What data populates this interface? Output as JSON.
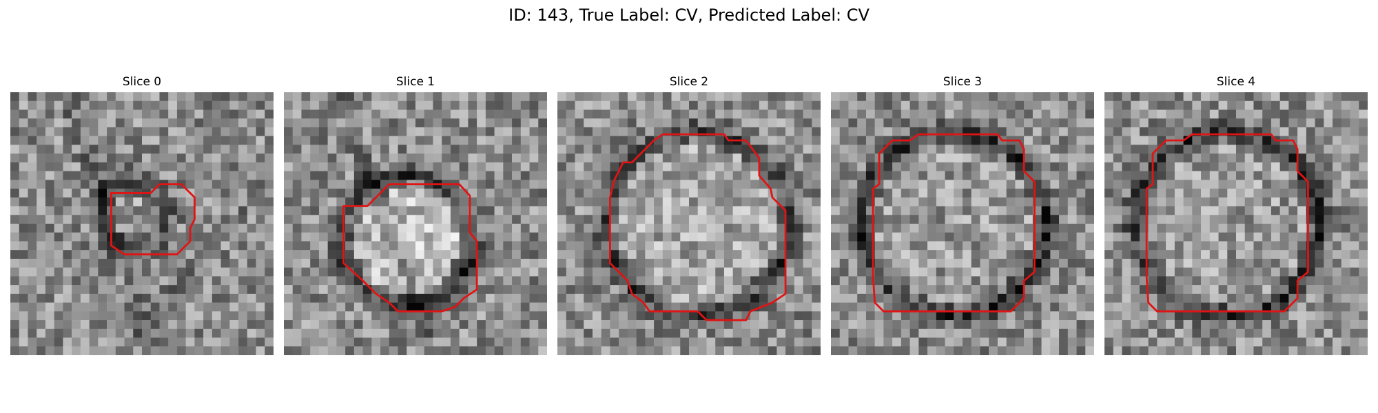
{
  "title": "ID: 143, True Label: CV, Predicted Label: CV",
  "contour_color": "#e01414",
  "colormap": "grayscale",
  "slices": [
    {
      "label": "Slice 0",
      "image": "noisy grayscale microscopy patch; small red contour (~1/3 width) left of center"
    },
    {
      "label": "Slice 1",
      "image": "noisy grayscale microscopy patch; medium red contour around bright vesicle left-center"
    },
    {
      "label": "Slice 2",
      "image": "noisy grayscale microscopy patch; large octagonal red contour around vesicle"
    },
    {
      "label": "Slice 3",
      "image": "noisy grayscale microscopy patch; large red contour around dark-rimmed vesicle"
    },
    {
      "label": "Slice 4",
      "image": "noisy grayscale microscopy patch; large red contour around dark-rimmed vesicle"
    }
  ]
}
